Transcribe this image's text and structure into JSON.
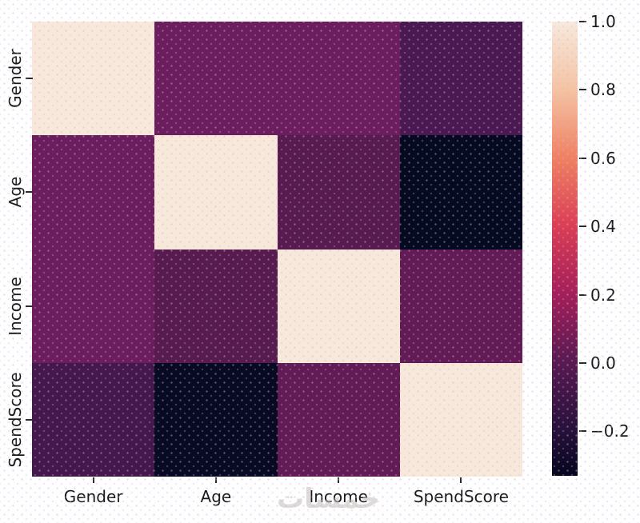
{
  "figure": {
    "background": "#fefefe",
    "tick_text_color": "#1a1a1a"
  },
  "watermark": {
    "text": "خمسات"
  },
  "chart_data": {
    "type": "heatmap",
    "title": "",
    "subtitle": "",
    "xlabel": "",
    "ylabel": "",
    "grid": false,
    "legend_position": "right-colorbar",
    "categories": [
      "Gender",
      "Age",
      "Income",
      "SpendScore"
    ],
    "x_tick_labels": [
      "Gender",
      "Age",
      "Income",
      "SpendScore"
    ],
    "y_tick_labels": [
      "Gender",
      "Age",
      "Income",
      "SpendScore"
    ],
    "matrix": [
      [
        1.0,
        0.06,
        0.06,
        -0.06
      ],
      [
        0.06,
        1.0,
        -0.01,
        -0.33
      ],
      [
        0.06,
        -0.01,
        1.0,
        0.03
      ],
      [
        -0.06,
        -0.33,
        0.03,
        1.0
      ]
    ],
    "vmin": -0.33,
    "vmax": 1.0,
    "colormap": "rocket",
    "cell_colors": [
      [
        "#F7E8DA",
        "#6B1D5E",
        "#6C1D5D",
        "#4A1951"
      ],
      [
        "#6B1D5E",
        "#F7E8DA",
        "#571B50",
        "#060A21"
      ],
      [
        "#6C1D5D",
        "#571B50",
        "#F7E8DA",
        "#621B55"
      ],
      [
        "#45184D",
        "#070A22",
        "#621B55",
        "#F7E8DA"
      ]
    ],
    "colorbar": {
      "ticks": [
        {
          "value": 1.0,
          "label": "1.0"
        },
        {
          "value": 0.8,
          "label": "0.8"
        },
        {
          "value": 0.6,
          "label": "0.6"
        },
        {
          "value": 0.4,
          "label": "0.4"
        },
        {
          "value": 0.2,
          "label": "0.2"
        },
        {
          "value": 0.0,
          "label": "0.0"
        },
        {
          "value": -0.2,
          "label": "−0.2"
        }
      ],
      "gradient_stops": [
        {
          "pos": 0,
          "color": "#F7E9DC"
        },
        {
          "pos": 15,
          "color": "#F5C3A2"
        },
        {
          "pos": 30,
          "color": "#EF8162"
        },
        {
          "pos": 45,
          "color": "#DB3E55"
        },
        {
          "pos": 60,
          "color": "#A41F5A"
        },
        {
          "pos": 75,
          "color": "#581A51"
        },
        {
          "pos": 90,
          "color": "#27113A"
        },
        {
          "pos": 100,
          "color": "#05051E"
        }
      ]
    }
  }
}
